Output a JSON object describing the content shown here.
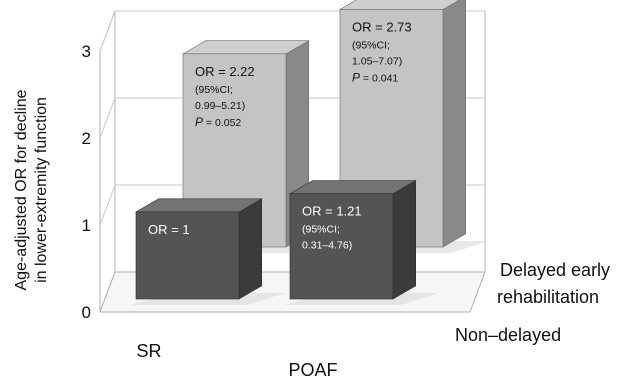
{
  "chart_data": {
    "type": "bar",
    "projection": "3d",
    "title": "",
    "xlabel": "",
    "ylabel": [
      "Age-adjusted OR for decline",
      "in lower-extremity function"
    ],
    "ylim": [
      0,
      3
    ],
    "yticks": [
      "0",
      "1",
      "2",
      "3"
    ],
    "grid": true,
    "categories": [
      "SR",
      "POAF"
    ],
    "series": [
      {
        "name": "Delayed early rehabilitation",
        "color": "#c4c4c4",
        "values": [
          2.22,
          2.73
        ],
        "annotations": [
          {
            "line1": "OR = 2.22",
            "line2": "(95%CI;",
            "line3": "0.99–5.21)",
            "p_label": "P",
            "p_value": " = 0.052"
          },
          {
            "line1": "OR = 2.73",
            "line2": "(95%CI;",
            "line3": "1.05–7.07)",
            "p_label": "P",
            "p_value": " = 0.041"
          }
        ]
      },
      {
        "name": "Non–delayed",
        "color": "#545454",
        "values": [
          1,
          1.21
        ],
        "annotations": [
          {
            "line1": "OR = 1",
            "line2": "",
            "line3": "",
            "p_label": "",
            "p_value": ""
          },
          {
            "line1": "OR = 1.21",
            "line2": "(95%CI;",
            "line3": "0.31–4.76)",
            "p_label": "",
            "p_value": ""
          }
        ]
      }
    ],
    "depth_labels": [
      {
        "line1": "Delayed early",
        "line2": "rehabilitation"
      },
      {
        "line1": "Non–delayed",
        "line2": ""
      }
    ]
  }
}
